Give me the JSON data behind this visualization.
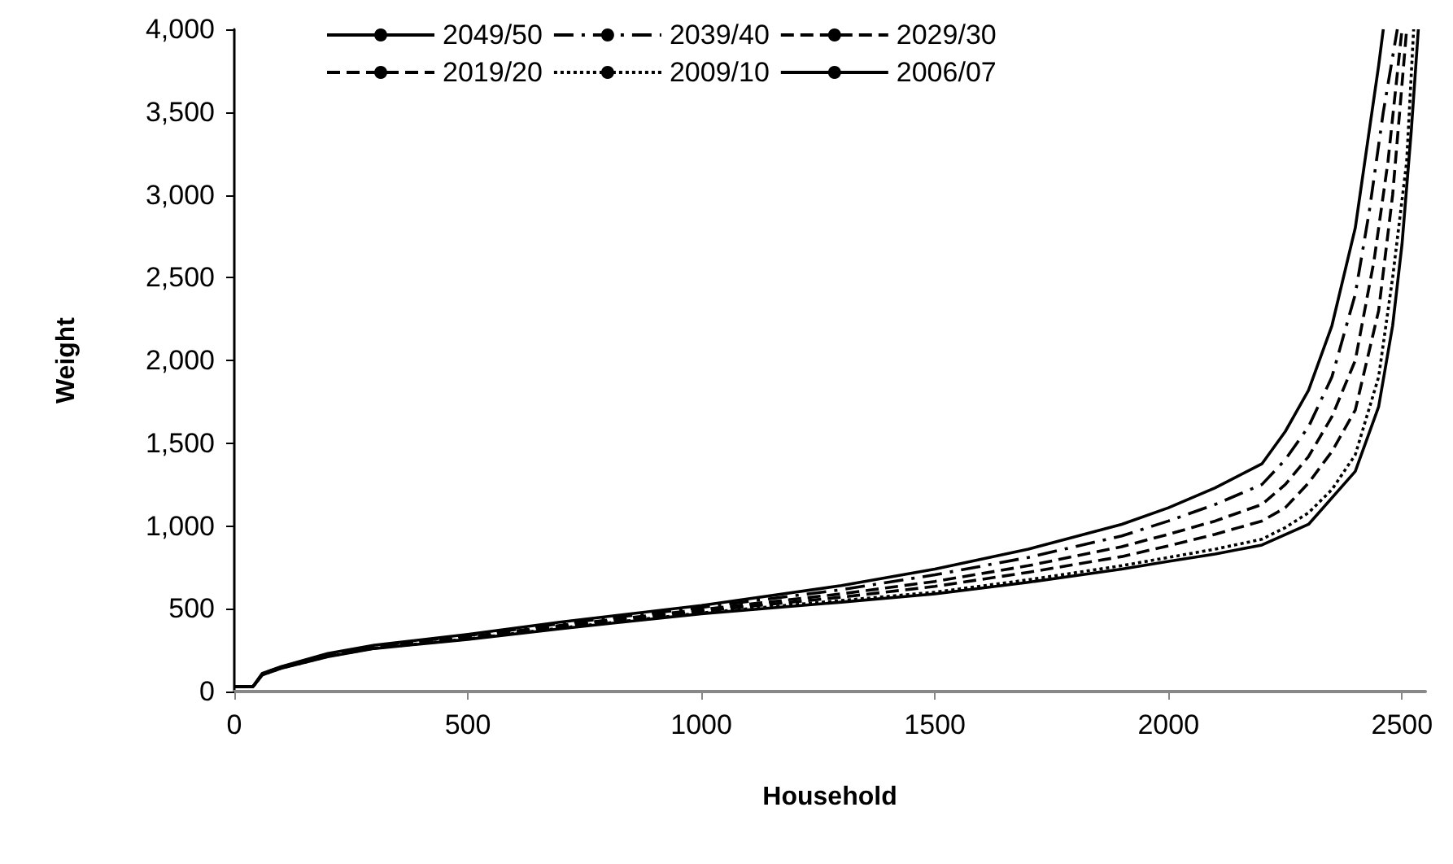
{
  "chart_data": {
    "type": "line",
    "xlabel": "Household",
    "ylabel": "Weight",
    "xlim": [
      0,
      2550
    ],
    "xticks": [
      0,
      500,
      1000,
      1500,
      2000,
      2500
    ],
    "ylim": [
      0,
      4000
    ],
    "yticks": [
      0,
      500,
      {
        "value": 1000,
        "label": "1,000"
      },
      {
        "value": 1500,
        "label": "1,500"
      },
      {
        "value": 2000,
        "label": "2,000"
      },
      {
        "value": 2500,
        "label": "2,500"
      },
      {
        "value": 3000,
        "label": "3,000"
      },
      {
        "value": 3500,
        "label": "3,500"
      },
      {
        "value": 4000,
        "label": "4,000"
      }
    ],
    "grid": false,
    "legend": "top",
    "marker": "none",
    "series": [
      {
        "name": "2049/50",
        "color": "#000000",
        "line_style": "solid",
        "x": [
          0,
          40,
          60,
          100,
          200,
          300,
          500,
          700,
          1000,
          1300,
          1500,
          1700,
          1900,
          2000,
          2100,
          2200,
          2250,
          2300,
          2350,
          2400,
          2430,
          2450,
          2460
        ],
        "values": [
          30,
          30,
          110,
          150,
          230,
          280,
          345,
          420,
          520,
          640,
          740,
          860,
          1010,
          1110,
          1230,
          1375,
          1570,
          1820,
          2210,
          2800,
          3390,
          3780,
          4000
        ]
      },
      {
        "name": "2039/40",
        "color": "#000000",
        "line_style": "dashdot",
        "x": [
          0,
          40,
          60,
          100,
          200,
          300,
          500,
          700,
          1000,
          1300,
          1500,
          1700,
          1900,
          2000,
          2100,
          2200,
          2250,
          2300,
          2350,
          2400,
          2430,
          2460,
          2490
        ],
        "values": [
          30,
          30,
          108,
          148,
          225,
          275,
          338,
          410,
          508,
          615,
          705,
          810,
          940,
          1030,
          1130,
          1250,
          1400,
          1600,
          1900,
          2400,
          2900,
          3500,
          4000
        ]
      },
      {
        "name": "2029/30",
        "color": "#000000",
        "line_style": "dashed",
        "x": [
          0,
          40,
          60,
          100,
          200,
          300,
          500,
          700,
          1000,
          1300,
          1500,
          1700,
          1900,
          2000,
          2100,
          2200,
          2250,
          2300,
          2350,
          2400,
          2440,
          2470,
          2500
        ],
        "values": [
          30,
          30,
          105,
          145,
          220,
          270,
          330,
          400,
          495,
          590,
          665,
          760,
          875,
          950,
          1030,
          1130,
          1250,
          1420,
          1660,
          2000,
          2600,
          3200,
          4000
        ]
      },
      {
        "name": "2019/20",
        "color": "#000000",
        "line_style": "dashed",
        "x": [
          0,
          40,
          60,
          100,
          200,
          300,
          500,
          700,
          1000,
          1300,
          1500,
          1700,
          1900,
          2000,
          2100,
          2200,
          2250,
          2300,
          2350,
          2400,
          2450,
          2480,
          2510
        ],
        "values": [
          30,
          30,
          103,
          143,
          215,
          265,
          325,
          392,
          485,
          570,
          635,
          720,
          815,
          880,
          950,
          1030,
          1110,
          1260,
          1450,
          1700,
          2300,
          3000,
          4000
        ]
      },
      {
        "name": "2009/10",
        "color": "#000000",
        "line_style": "dotted",
        "x": [
          0,
          40,
          60,
          100,
          200,
          300,
          500,
          700,
          1000,
          1300,
          1500,
          1700,
          1900,
          2000,
          2100,
          2200,
          2250,
          2300,
          2350,
          2400,
          2450,
          2480,
          2510,
          2525
        ],
        "values": [
          30,
          30,
          101,
          141,
          212,
          262,
          318,
          384,
          475,
          550,
          600,
          675,
          760,
          810,
          860,
          920,
          990,
          1080,
          1220,
          1430,
          1900,
          2500,
          3200,
          4000
        ]
      },
      {
        "name": "2006/07",
        "color": "#000000",
        "line_style": "solid",
        "x": [
          0,
          40,
          60,
          100,
          200,
          300,
          500,
          700,
          1000,
          1300,
          1500,
          1700,
          1900,
          2000,
          2100,
          2200,
          2300,
          2400,
          2450,
          2480,
          2500,
          2520,
          2535
        ],
        "values": [
          30,
          30,
          100,
          140,
          210,
          260,
          315,
          380,
          470,
          540,
          590,
          660,
          740,
          786,
          830,
          885,
          1010,
          1330,
          1720,
          2210,
          2700,
          3390,
          4000
        ]
      }
    ]
  }
}
